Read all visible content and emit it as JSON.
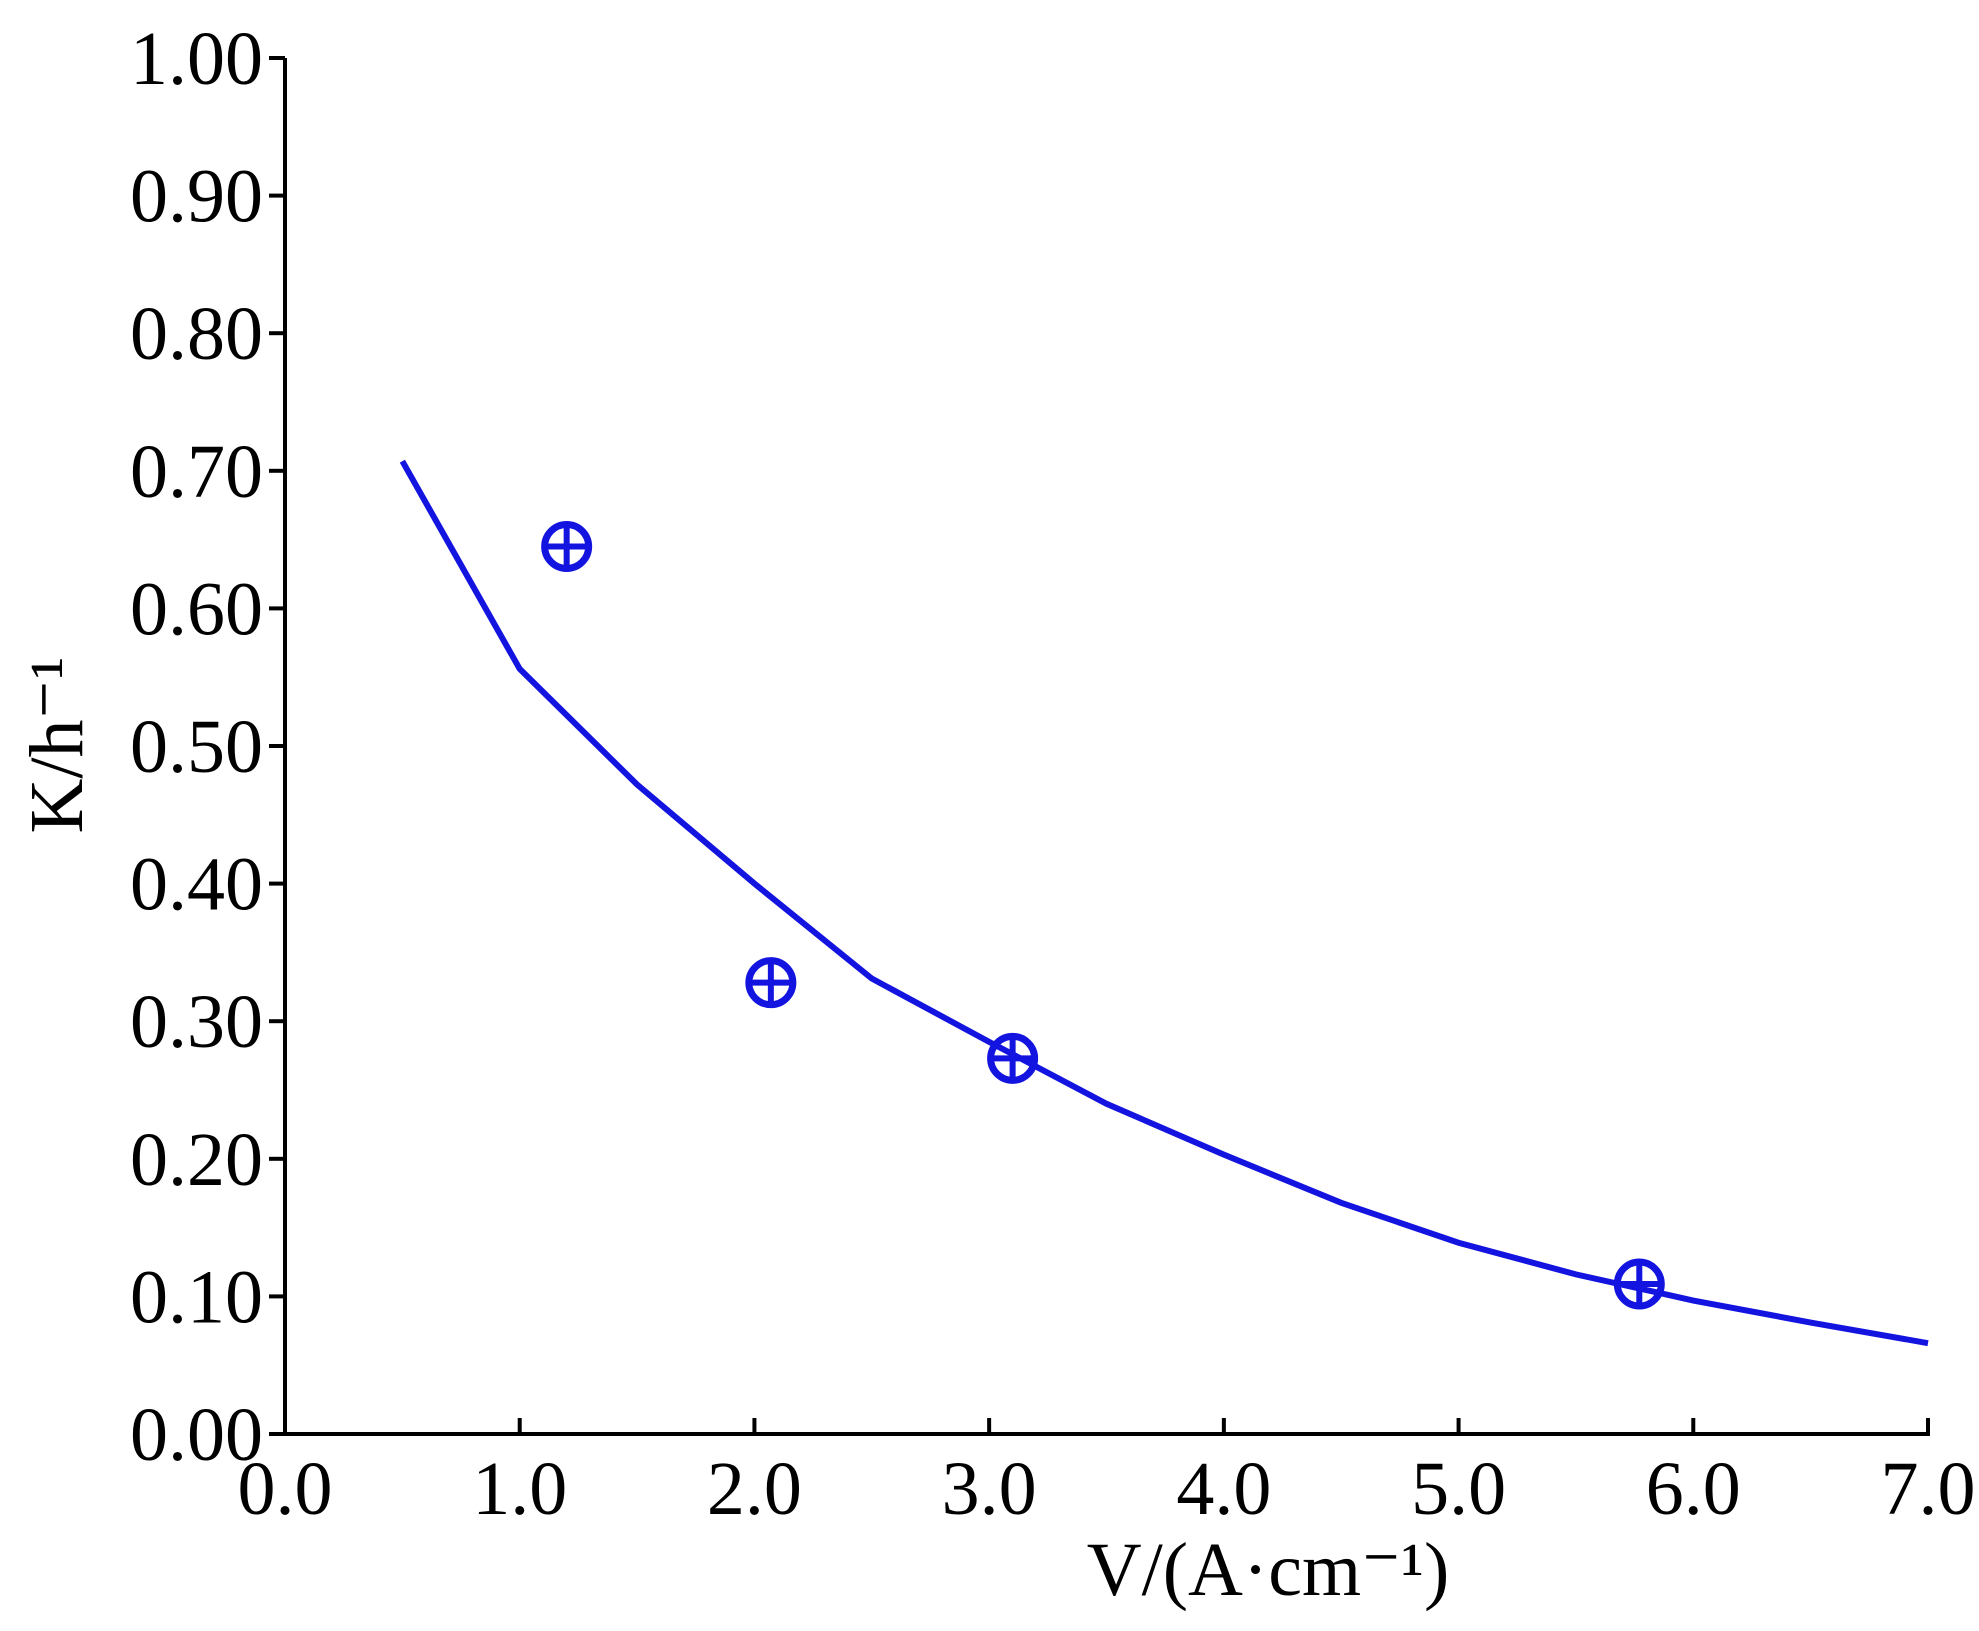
{
  "chart_data": {
    "type": "scatter",
    "x_label": "V/(A·cm⁻¹)",
    "y_label": "K/h⁻¹",
    "xlim": [
      0,
      7
    ],
    "ylim": [
      0,
      1
    ],
    "xticks": [
      {
        "value": 0,
        "label": "0.0"
      },
      {
        "value": 1,
        "label": "1.0"
      },
      {
        "value": 2,
        "label": "2.0"
      },
      {
        "value": 3,
        "label": "3.0"
      },
      {
        "value": 4,
        "label": "4.0"
      },
      {
        "value": 5,
        "label": "5.0"
      },
      {
        "value": 6,
        "label": "6.0"
      },
      {
        "value": 7,
        "label": "7.0"
      }
    ],
    "yticks": [
      {
        "value": 0,
        "label": "0.00"
      },
      {
        "value": 0.1,
        "label": "0.10"
      },
      {
        "value": 0.2,
        "label": "0.20"
      },
      {
        "value": 0.3,
        "label": "0.30"
      },
      {
        "value": 0.4,
        "label": "0.40"
      },
      {
        "value": 0.5,
        "label": "0.50"
      },
      {
        "value": 0.6,
        "label": "0.60"
      },
      {
        "value": 0.7,
        "label": "0.70"
      },
      {
        "value": 0.8,
        "label": "0.80"
      },
      {
        "value": 0.9,
        "label": "0.90"
      },
      {
        "value": 1,
        "label": "1.00"
      }
    ],
    "grid": false,
    "series": [
      {
        "mode": "markers",
        "color": "#1414e0",
        "x": [
          1.2,
          2.07,
          3.1,
          5.77
        ],
        "values": [
          0.645,
          0.328,
          0.273,
          0.109
        ]
      },
      {
        "mode": "line",
        "color": "#1414e0",
        "x": [
          0.5,
          1.0,
          1.5,
          2.0,
          2.5,
          3.0,
          3.5,
          4.0,
          4.5,
          5.0,
          5.5,
          6.0,
          6.5,
          7.0
        ],
        "values": [
          0.707,
          0.556,
          0.472,
          0.4,
          0.331,
          0.285,
          0.24,
          0.203,
          0.168,
          0.139,
          0.116,
          0.097,
          0.081,
          0.066
        ]
      }
    ]
  }
}
